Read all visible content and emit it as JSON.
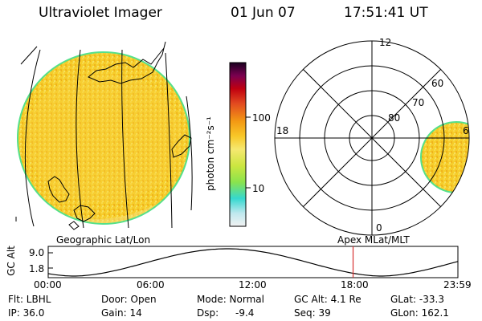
{
  "header": {
    "title": "Ultraviolet Imager",
    "date": "01 Jun 07",
    "time": "17:51:41 UT"
  },
  "colors": {
    "disk_fill": "#f6cd2a",
    "disk_edge": "#55e08a",
    "polar_fill": "#f2c424",
    "orbit_line": "#000000",
    "time_marker": "#d83030"
  },
  "colorbar": {
    "unit_label": "photon cm⁻²s⁻¹",
    "tick_100": "100",
    "tick_10": "10",
    "stops": [
      "#f2f2f2",
      "#bfe8ee",
      "#35d8cf",
      "#8be34c",
      "#cce640",
      "#f6e870",
      "#f8c828",
      "#f39a14",
      "#e24a20",
      "#c00010",
      "#7a0050",
      "#1a0020"
    ]
  },
  "polar_labels": {
    "top": "12",
    "left": "18",
    "right": "6",
    "bottom": "0",
    "ring60": "60",
    "ring70": "70",
    "ring80": "80"
  },
  "map_labels": {
    "geographic": "Geographic Lat/Lon",
    "apex": "Apex MLat/MLT"
  },
  "orbit": {
    "axis_label": "GC Alt",
    "y_top": "9.0",
    "y_bottom": "1.8",
    "x_ticks": [
      "00:00",
      "06:00",
      "12:00",
      "18:00",
      "23:59"
    ],
    "current_time_hours": 17.86
  },
  "info": {
    "flt": "Flt: LBHL",
    "ip": "IP: 36.0",
    "door": "Door: Open",
    "gain": "Gain: 14",
    "mode": "Mode: Normal",
    "dsp_label": "Dsp:",
    "dsp_value": "-9.4",
    "gcalt": "GC Alt: 4.1 Re",
    "seq": "Seq: 39",
    "glat": "GLat: -33.3",
    "glon": "GLon: 162.1"
  }
}
